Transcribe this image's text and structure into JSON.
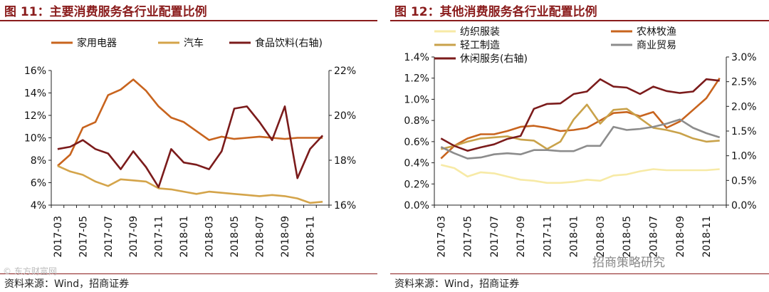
{
  "left_panel": {
    "title": "图 11：主要消费服务各行业配置比例",
    "source": "资料来源：Wind，招商证券"
  },
  "right_panel": {
    "title": "图 12：其他消费服务各行业配置比例",
    "source": "资料来源：Wind，招商证券"
  },
  "watermark": "招商策略研究",
  "watermark_left": "© 东方财富网",
  "chart_data": [
    {
      "type": "line",
      "x": [
        "2017-03",
        "2017-04",
        "2017-05",
        "2017-06",
        "2017-07",
        "2017-08",
        "2017-09",
        "2017-10",
        "2017-11",
        "2017-12",
        "2018-01",
        "2018-02",
        "2018-03",
        "2018-04",
        "2018-05",
        "2018-06",
        "2018-07",
        "2018-08",
        "2018-09",
        "2018-10",
        "2018-11",
        "2018-12"
      ],
      "xtick_labels": [
        "2017-03",
        "2017-05",
        "2017-07",
        "2017-09",
        "2017-11",
        "2018-01",
        "2018-03",
        "2018-05",
        "2018-07",
        "2018-09",
        "2018-11"
      ],
      "ylim": [
        4,
        16
      ],
      "yticks": [
        "4%",
        "6%",
        "8%",
        "10%",
        "12%",
        "14%",
        "16%"
      ],
      "ylim_right": [
        16,
        22
      ],
      "yticks_right": [
        "16%",
        "18%",
        "20%",
        "22%"
      ],
      "legend_position": "top",
      "series": [
        {
          "name": "家用电器",
          "axis": "left",
          "color": "#c8641e",
          "values": [
            7.5,
            8.5,
            10.9,
            11.4,
            13.8,
            14.3,
            15.2,
            14.2,
            12.8,
            11.8,
            11.4,
            10.6,
            9.8,
            10.1,
            9.9,
            10.0,
            10.1,
            10.0,
            9.9,
            10.0,
            10.0,
            10.0
          ]
        },
        {
          "name": "汽车",
          "axis": "left",
          "color": "#d4a44a",
          "values": [
            7.5,
            7.0,
            6.7,
            6.1,
            5.7,
            6.3,
            6.2,
            6.1,
            5.5,
            5.4,
            5.2,
            5.0,
            5.2,
            5.1,
            5.0,
            4.9,
            4.8,
            4.9,
            4.8,
            4.6,
            4.2,
            4.3
          ]
        },
        {
          "name": "食品饮料(右轴)",
          "axis": "right",
          "color": "#7b1b1b",
          "values": [
            18.5,
            18.6,
            18.9,
            18.5,
            18.3,
            17.6,
            18.4,
            17.7,
            16.8,
            18.5,
            17.9,
            17.8,
            17.6,
            18.4,
            20.3,
            20.4,
            19.7,
            18.9,
            20.4,
            17.2,
            18.5,
            19.1
          ]
        }
      ]
    },
    {
      "type": "line",
      "x": [
        "2017-03",
        "2017-04",
        "2017-05",
        "2017-06",
        "2017-07",
        "2017-08",
        "2017-09",
        "2017-10",
        "2017-11",
        "2017-12",
        "2018-01",
        "2018-02",
        "2018-03",
        "2018-04",
        "2018-05",
        "2018-06",
        "2018-07",
        "2018-08",
        "2018-09",
        "2018-10",
        "2018-11",
        "2018-12"
      ],
      "xtick_labels": [
        "2017-03",
        "2017-05",
        "2017-07",
        "2017-09",
        "2017-11",
        "2018-01",
        "2018-03",
        "2018-05",
        "2018-07",
        "2018-09",
        "2018-11"
      ],
      "ylim": [
        0,
        1.4
      ],
      "yticks": [
        "0.0%",
        "0.2%",
        "0.4%",
        "0.6%",
        "0.8%",
        "1.0%",
        "1.2%",
        "1.4%"
      ],
      "ylim_right": [
        0,
        3
      ],
      "yticks_right": [
        "0.0%",
        "0.5%",
        "1.0%",
        "1.5%",
        "2.0%",
        "2.5%",
        "3.0%"
      ],
      "legend_position": "top",
      "series": [
        {
          "name": "纺织服装",
          "axis": "left",
          "color": "#f7eaa6",
          "values": [
            0.38,
            0.35,
            0.27,
            0.31,
            0.3,
            0.27,
            0.24,
            0.23,
            0.21,
            0.21,
            0.22,
            0.24,
            0.23,
            0.28,
            0.29,
            0.32,
            0.34,
            0.33,
            0.33,
            0.33,
            0.33,
            0.34
          ]
        },
        {
          "name": "农林牧渔",
          "axis": "left",
          "color": "#c8641e",
          "values": [
            0.44,
            0.56,
            0.63,
            0.67,
            0.67,
            0.7,
            0.74,
            0.75,
            0.73,
            0.7,
            0.71,
            0.73,
            0.8,
            0.87,
            0.88,
            0.84,
            0.88,
            0.73,
            0.79,
            0.9,
            1.01,
            1.2
          ]
        },
        {
          "name": "轻工制造",
          "axis": "left",
          "color": "#c9a24a",
          "values": [
            0.53,
            0.56,
            0.6,
            0.63,
            0.64,
            0.65,
            0.62,
            0.61,
            0.53,
            0.6,
            0.81,
            0.95,
            0.77,
            0.9,
            0.91,
            0.82,
            0.73,
            0.71,
            0.68,
            0.63,
            0.6,
            0.61
          ]
        },
        {
          "name": "商业贸易",
          "axis": "left",
          "color": "#8c8c8c",
          "values": [
            0.55,
            0.49,
            0.44,
            0.45,
            0.48,
            0.49,
            0.48,
            0.52,
            0.52,
            0.51,
            0.51,
            0.56,
            0.56,
            0.74,
            0.71,
            0.72,
            0.74,
            0.77,
            0.81,
            0.73,
            0.68,
            0.64
          ]
        },
        {
          "name": "休闲服务(右轴)",
          "axis": "right",
          "color": "#7b1b1b",
          "values": [
            1.35,
            1.2,
            1.1,
            1.17,
            1.23,
            1.34,
            1.4,
            1.95,
            2.05,
            2.06,
            2.25,
            2.3,
            2.55,
            2.4,
            2.38,
            2.25,
            2.4,
            2.31,
            2.27,
            2.3,
            2.55,
            2.52
          ]
        }
      ]
    }
  ]
}
